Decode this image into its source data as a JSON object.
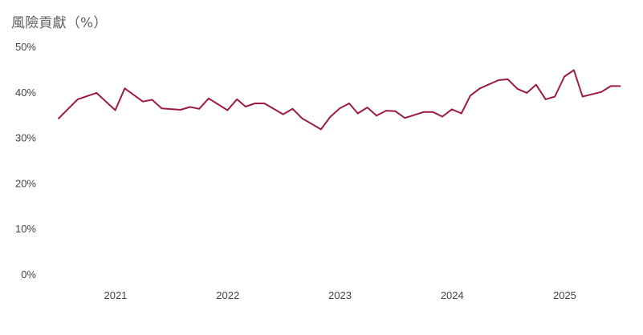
{
  "chart_data": {
    "type": "line",
    "title": "風險貢獻（%）",
    "xlabel": "",
    "ylabel": "",
    "ylim": [
      0,
      50
    ],
    "y_ticks": [
      0,
      10,
      20,
      30,
      40,
      50
    ],
    "y_tick_labels": [
      "0%",
      "10%",
      "20%",
      "30%",
      "40%",
      "50%"
    ],
    "x_ticks": [
      2021,
      2022,
      2023,
      2024,
      2025
    ],
    "x_tick_labels": [
      "2021",
      "2022",
      "2023",
      "2024",
      "2025"
    ],
    "x_range": [
      "2020-06-01",
      "2025-08-15"
    ],
    "grid": false,
    "legend": "none",
    "colors": {
      "line": "#9b1b45",
      "axis_text": "#444444",
      "title": "#5f5f5f"
    },
    "series": [
      {
        "x": [
          "2020-06-30",
          "2020-08-31",
          "2020-10-31",
          "2020-12-31",
          "2021-01-31",
          "2021-03-31",
          "2021-04-30",
          "2021-05-31",
          "2021-07-31",
          "2021-08-31",
          "2021-09-30",
          "2021-10-31",
          "2021-12-31",
          "2022-01-31",
          "2022-02-28",
          "2022-03-31",
          "2022-04-30",
          "2022-06-30",
          "2022-07-31",
          "2022-08-31",
          "2022-10-31",
          "2022-11-30",
          "2022-12-31",
          "2023-01-31",
          "2023-02-28",
          "2023-03-31",
          "2023-04-30",
          "2023-05-31",
          "2023-06-30",
          "2023-07-31",
          "2023-09-30",
          "2023-10-31",
          "2023-11-30",
          "2023-12-31",
          "2024-01-31",
          "2024-02-29",
          "2024-03-31",
          "2024-05-31",
          "2024-06-30",
          "2024-07-31",
          "2024-08-31",
          "2024-09-30",
          "2024-10-31",
          "2024-11-30",
          "2024-12-31",
          "2025-01-31",
          "2025-02-28",
          "2025-04-30",
          "2025-05-31",
          "2025-06-30"
        ],
        "values": [
          34.2,
          38.4,
          39.8,
          36.0,
          40.8,
          37.9,
          38.3,
          36.4,
          36.1,
          36.7,
          36.3,
          38.6,
          36.0,
          38.4,
          36.8,
          37.5,
          37.5,
          35.1,
          36.3,
          34.2,
          31.8,
          34.5,
          36.4,
          37.5,
          35.3,
          36.6,
          34.8,
          35.9,
          35.8,
          34.3,
          35.6,
          35.6,
          34.6,
          36.2,
          35.3,
          39.2,
          40.8,
          42.6,
          42.8,
          40.7,
          39.8,
          41.6,
          38.4,
          39.0,
          43.4,
          44.8,
          39.0,
          40.0,
          41.3,
          41.3
        ]
      }
    ]
  }
}
